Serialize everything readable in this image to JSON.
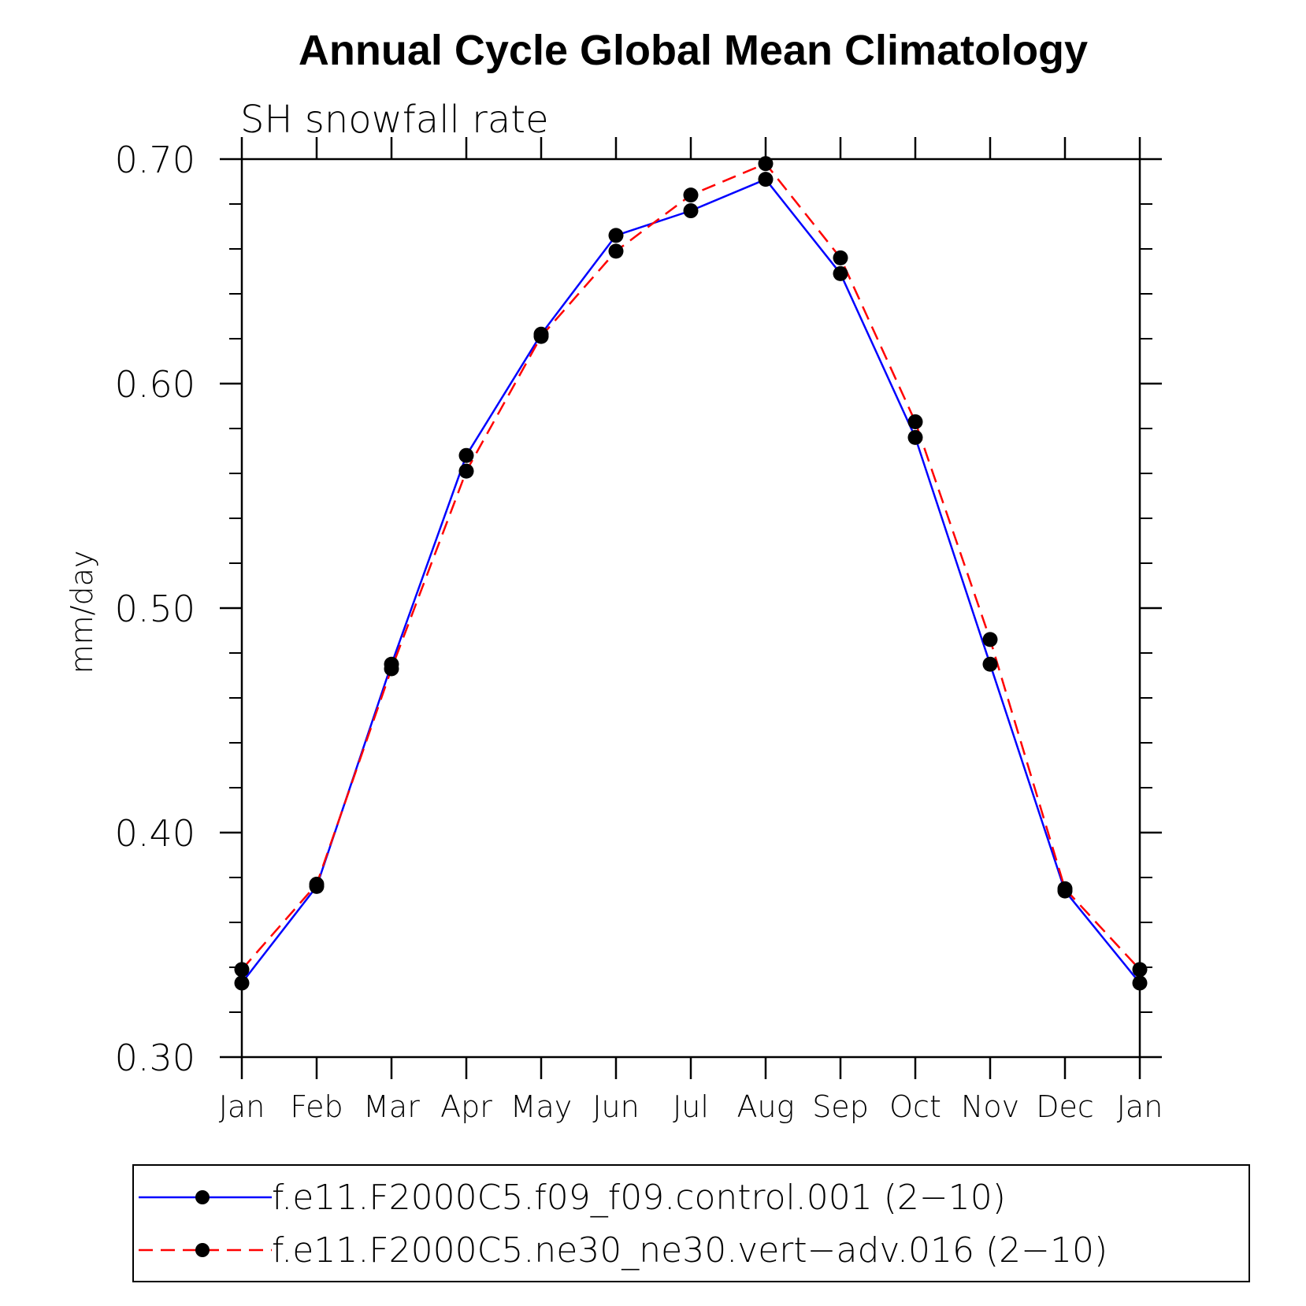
{
  "chart_data": {
    "type": "line",
    "title": "Annual Cycle Global Mean Climatology",
    "subtitle": "SH snowfall rate",
    "xlabel": "",
    "ylabel": "mm/day",
    "categories": [
      "Jan",
      "Feb",
      "Mar",
      "Apr",
      "May",
      "Jun",
      "Jul",
      "Aug",
      "Sep",
      "Oct",
      "Nov",
      "Dec",
      "Jan"
    ],
    "ylim": [
      0.3,
      0.7
    ],
    "yticks": [
      "0.30",
      "0.40",
      "0.50",
      "0.60",
      "0.70"
    ],
    "y_minor_step": 0.02,
    "grid": false,
    "legend_position": "bottom",
    "series": [
      {
        "name": "f.e11.F2000C5.f09_f09.control.001 (2−10)",
        "values": [
          0.333,
          0.376,
          0.475,
          0.568,
          0.622,
          0.666,
          0.677,
          0.691,
          0.649,
          0.576,
          0.475,
          0.374,
          0.333
        ],
        "color": "#0000ff",
        "dash": "solid",
        "marker": "filled-circle"
      },
      {
        "name": "f.e11.F2000C5.ne30_ne30.vert−adv.016 (2−10)",
        "values": [
          0.339,
          0.377,
          0.473,
          0.561,
          0.621,
          0.659,
          0.684,
          0.698,
          0.656,
          0.583,
          0.486,
          0.375,
          0.339
        ],
        "color": "#ff0000",
        "dash": "dashed",
        "marker": "filled-circle"
      }
    ]
  }
}
